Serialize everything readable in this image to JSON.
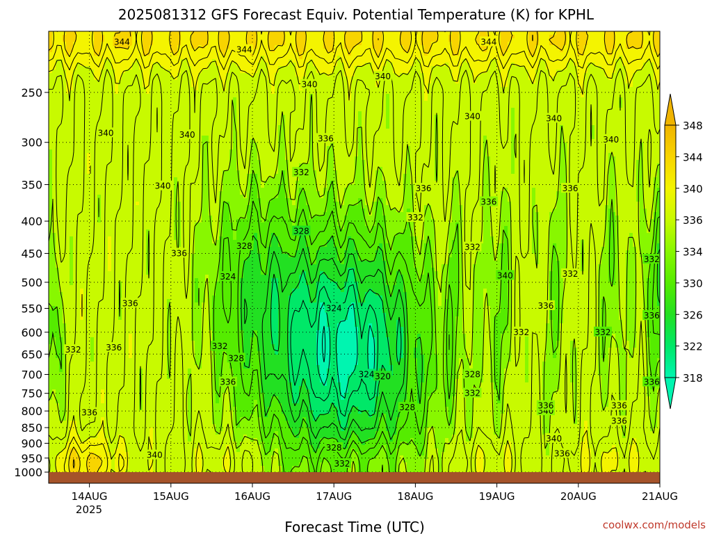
{
  "chart_data": {
    "type": "heatmap",
    "title": "2025081312 GFS Forecast Equiv. Potential Temperature (K) for KPHL",
    "xlabel": "Forecast Time (UTC)",
    "ylabel": "",
    "credit": "coolwx.com/models",
    "x_ticks": [
      "14AUG",
      "15AUG",
      "16AUG",
      "17AUG",
      "18AUG",
      "19AUG",
      "20AUG",
      "21AUG"
    ],
    "x_year": "2025",
    "x_range_days": [
      13.5,
      21.0
    ],
    "y_ticks": [
      250,
      300,
      350,
      400,
      450,
      500,
      550,
      600,
      650,
      700,
      750,
      800,
      850,
      900,
      950,
      1000
    ],
    "y_range_hpa": [
      200,
      1000
    ],
    "y_scale": "log-pressure",
    "grid": true,
    "colorbar": {
      "levels": [
        318,
        322,
        326,
        330,
        334,
        336,
        340,
        344,
        348
      ],
      "colors": [
        "#00f5b0",
        "#00e868",
        "#22e022",
        "#55ec00",
        "#88f700",
        "#c8fa00",
        "#f4f400",
        "#f8d400",
        "#f0b400"
      ]
    },
    "surface_color": "#a5532a",
    "contour_labels": [
      {
        "value": "344",
        "day": 14.4,
        "hpa": 208
      },
      {
        "value": "344",
        "day": 15.9,
        "hpa": 214
      },
      {
        "value": "344",
        "day": 18.9,
        "hpa": 208
      },
      {
        "value": "340",
        "day": 16.7,
        "hpa": 243
      },
      {
        "value": "340",
        "day": 17.6,
        "hpa": 236
      },
      {
        "value": "340",
        "day": 18.7,
        "hpa": 273
      },
      {
        "value": "340",
        "day": 19.7,
        "hpa": 275
      },
      {
        "value": "340",
        "day": 20.4,
        "hpa": 297
      },
      {
        "value": "340",
        "day": 14.2,
        "hpa": 290
      },
      {
        "value": "340",
        "day": 15.2,
        "hpa": 292
      },
      {
        "value": "340",
        "day": 14.9,
        "hpa": 352
      },
      {
        "value": "340",
        "day": 14.8,
        "hpa": 940
      },
      {
        "value": "340",
        "day": 19.1,
        "hpa": 488
      },
      {
        "value": "340",
        "day": 19.6,
        "hpa": 800
      },
      {
        "value": "340",
        "day": 19.7,
        "hpa": 885
      },
      {
        "value": "336",
        "day": 16.9,
        "hpa": 296
      },
      {
        "value": "336",
        "day": 18.1,
        "hpa": 355
      },
      {
        "value": "336",
        "day": 18.9,
        "hpa": 373
      },
      {
        "value": "336",
        "day": 19.9,
        "hpa": 355
      },
      {
        "value": "336",
        "day": 15.1,
        "hpa": 450
      },
      {
        "value": "336",
        "day": 14.5,
        "hpa": 540
      },
      {
        "value": "336",
        "day": 14.3,
        "hpa": 635
      },
      {
        "value": "336",
        "day": 15.7,
        "hpa": 720
      },
      {
        "value": "336",
        "day": 14.0,
        "hpa": 805
      },
      {
        "value": "336",
        "day": 19.6,
        "hpa": 545
      },
      {
        "value": "336",
        "day": 20.9,
        "hpa": 565
      },
      {
        "value": "336",
        "day": 20.9,
        "hpa": 720
      },
      {
        "value": "336",
        "day": 19.6,
        "hpa": 785
      },
      {
        "value": "336",
        "day": 20.5,
        "hpa": 785
      },
      {
        "value": "336",
        "day": 20.5,
        "hpa": 830
      },
      {
        "value": "336",
        "day": 19.8,
        "hpa": 935
      },
      {
        "value": "332",
        "day": 16.6,
        "hpa": 335
      },
      {
        "value": "332",
        "day": 18.0,
        "hpa": 395
      },
      {
        "value": "332",
        "day": 18.7,
        "hpa": 440
      },
      {
        "value": "332",
        "day": 19.9,
        "hpa": 485
      },
      {
        "value": "332",
        "day": 20.9,
        "hpa": 460
      },
      {
        "value": "332",
        "day": 13.8,
        "hpa": 640
      },
      {
        "value": "332",
        "day": 15.6,
        "hpa": 632
      },
      {
        "value": "332",
        "day": 19.3,
        "hpa": 600
      },
      {
        "value": "332",
        "day": 20.3,
        "hpa": 600
      },
      {
        "value": "332",
        "day": 18.7,
        "hpa": 750
      },
      {
        "value": "332",
        "day": 17.1,
        "hpa": 970
      },
      {
        "value": "328",
        "day": 16.6,
        "hpa": 415
      },
      {
        "value": "328",
        "day": 15.9,
        "hpa": 438
      },
      {
        "value": "328",
        "day": 15.8,
        "hpa": 660
      },
      {
        "value": "328",
        "day": 18.7,
        "hpa": 700
      },
      {
        "value": "328",
        "day": 17.9,
        "hpa": 790
      },
      {
        "value": "328",
        "day": 17.0,
        "hpa": 915
      },
      {
        "value": "324",
        "day": 15.7,
        "hpa": 490
      },
      {
        "value": "324",
        "day": 17.0,
        "hpa": 550
      },
      {
        "value": "324",
        "day": 17.4,
        "hpa": 700
      },
      {
        "value": "320",
        "day": 17.6,
        "hpa": 705
      }
    ],
    "features": {
      "upper_max_center": {
        "day": 16.2,
        "hpa": 205
      },
      "trough_center": {
        "day": 17.1,
        "hpa": 640
      },
      "lowlevel_max_center": {
        "day": 13.9,
        "hpa": 980
      }
    }
  }
}
